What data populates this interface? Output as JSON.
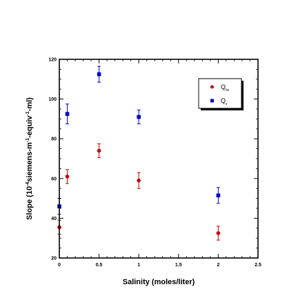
{
  "chart_data": {
    "type": "scatter",
    "title": "",
    "xlabel": "Salinity (moles/liter)",
    "ylabel": {
      "prefix": "Slope (10",
      "sup1": "-4",
      "mid1": "siemens-m",
      "sup2": "-1",
      "mid2": "-equiv",
      "sup3": "-1",
      "suffix": "-ml)"
    },
    "xlim": [
      0,
      2.5
    ],
    "ylim": [
      20,
      120
    ],
    "xticks": [
      0,
      0.5,
      1,
      1.5,
      2,
      2.5
    ],
    "xtick_labels": [
      "0",
      "0.5",
      "1",
      "1.5",
      "2",
      "2.5"
    ],
    "yticks": [
      20,
      40,
      60,
      80,
      100,
      120
    ],
    "ytick_labels": [
      "20",
      "40",
      "60",
      "80",
      "100",
      "120"
    ],
    "grid": false,
    "legend_position": "top-right",
    "series": [
      {
        "name": "Q",
        "name_sub": "bv",
        "color": "#cc0000",
        "marker": "circle",
        "x": [
          0,
          0.1,
          0.5,
          1,
          2
        ],
        "y": [
          35.5,
          61,
          74,
          59,
          32.5
        ],
        "err": [
          3.5,
          3.5,
          3.5,
          4,
          3.5
        ]
      },
      {
        "name": "Q",
        "name_sub": "v",
        "color": "#0000cc",
        "marker": "square",
        "x": [
          0,
          0.1,
          0.5,
          1,
          2
        ],
        "y": [
          46,
          92.5,
          112.5,
          91,
          51.5
        ],
        "err": [
          4,
          5,
          4,
          3.5,
          4
        ]
      }
    ]
  }
}
